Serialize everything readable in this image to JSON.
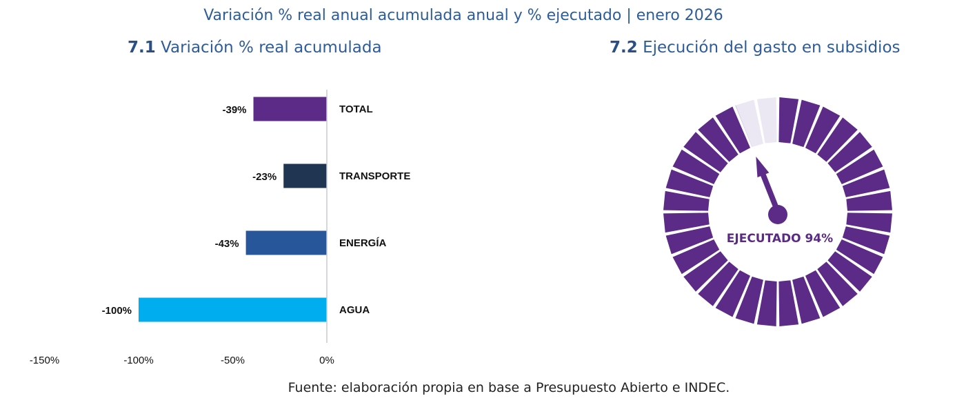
{
  "title": "Variación % real anual acumulada anual y % ejecutado | enero 2026",
  "footer": "Fuente: elaboración propia en base a Presupuesto Abierto e INDEC.",
  "chart_data": [
    {
      "type": "bar",
      "orientation": "horizontal",
      "title_number": "7.1",
      "title": "Variación % real acumulada",
      "categories": [
        "TOTAL",
        "TRANSPORTE",
        "ENERGÍA",
        "AGUA"
      ],
      "values": [
        -39,
        -23,
        -43,
        -100
      ],
      "data_labels": [
        "-39%",
        "-23%",
        "-43%",
        "-100%"
      ],
      "colors": [
        "#5c2a87",
        "#1f3552",
        "#27569b",
        "#00adef"
      ],
      "xlim": [
        -150,
        0
      ],
      "xticks": [
        -150,
        -100,
        -50,
        0
      ],
      "xtick_labels": [
        "-150%",
        "-100%",
        "-50%",
        "0%"
      ],
      "grid": false
    },
    {
      "type": "gauge",
      "title_number": "7.2",
      "title": "Ejecución del gasto en subsidios",
      "value": 94,
      "label": "EJECUTADO 94%",
      "colors": {
        "filled": "#5c2a87",
        "empty": "#ece8f3"
      }
    }
  ]
}
